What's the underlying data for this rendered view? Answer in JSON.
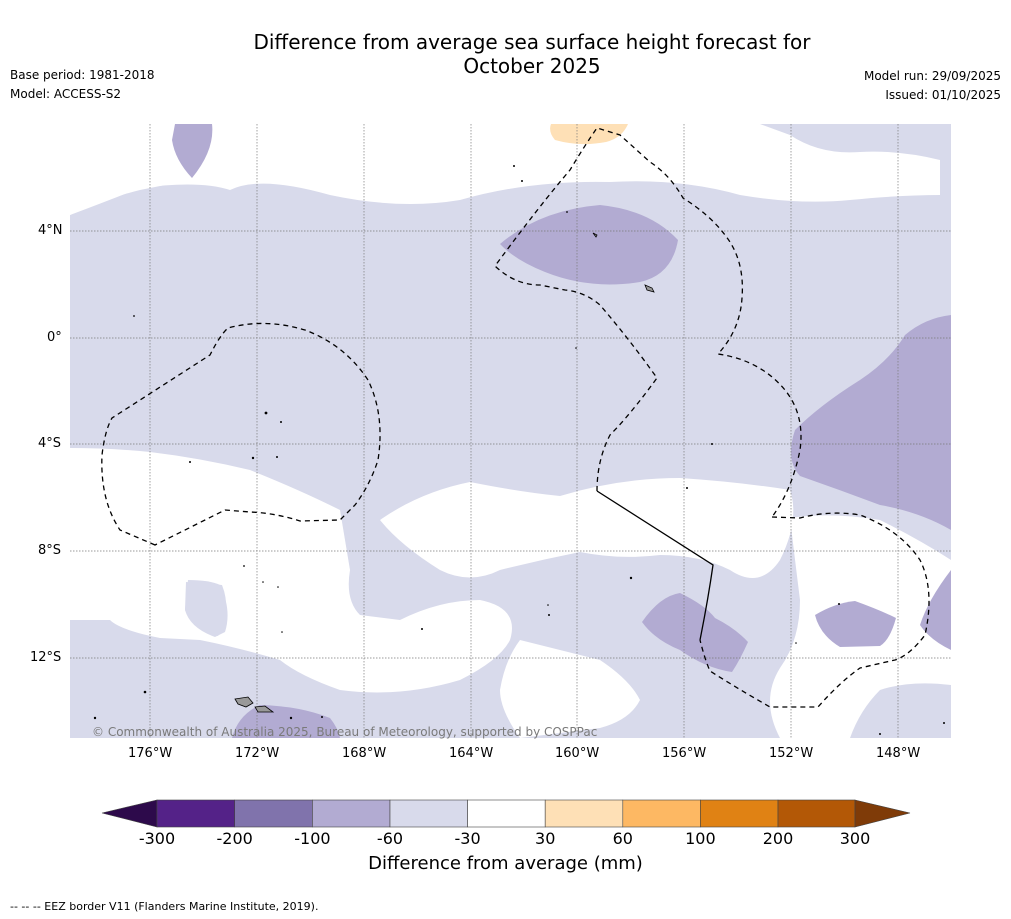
{
  "title": {
    "line1": "Difference from average sea surface height forecast for",
    "line2": "October 2025"
  },
  "meta_left": {
    "base_period": "Base period: 1981-2018",
    "model": "Model: ACCESS-S2"
  },
  "meta_right": {
    "model_run": "Model run: 29/09/2025",
    "issued": "Issued: 01/10/2025"
  },
  "map": {
    "lat_labels": [
      "4°N",
      "0°",
      "4°S",
      "8°S",
      "12°S"
    ],
    "lon_labels": [
      "176°W",
      "172°W",
      "168°W",
      "164°W",
      "160°W",
      "156°W",
      "152°W",
      "148°W"
    ],
    "credit": "© Commonwealth of Australia 2025, Bureau of Meteorology, supported by COSPPac"
  },
  "colorbar": {
    "title": "Difference from average (mm)",
    "ticks": [
      "-300",
      "-200",
      "-100",
      "-60",
      "-30",
      "30",
      "60",
      "100",
      "200",
      "300"
    ],
    "colors": {
      "under": "#2d0a4b",
      "c1": "#542288",
      "c2": "#8073ac",
      "c3": "#b2abd2",
      "c4": "#d8daeb",
      "c5": "#ffffff",
      "c6": "#fee0b6",
      "c7": "#fdb863",
      "c8": "#e08214",
      "c9": "#b35806",
      "over": "#7f3b08"
    }
  },
  "footer": "-- -- -- EEZ border V11 (Flanders Marine Institute, 2019)."
}
